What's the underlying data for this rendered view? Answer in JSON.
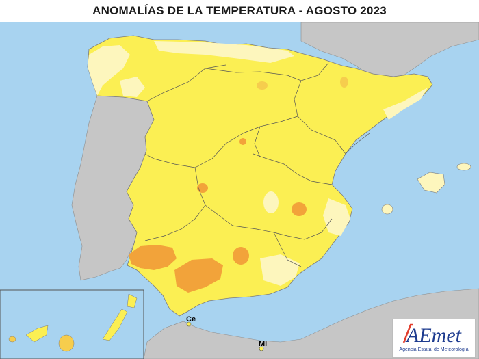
{
  "title": "ANOMALÍAS DE LA TEMPERATURA - AGOSTO 2023",
  "cities": [
    {
      "label": "Ce"
    },
    {
      "label": "Ml"
    }
  ],
  "logo": {
    "brand": "AEmet",
    "subtitle": "Agencia Estatal de Meteorología"
  },
  "colors": {
    "sea": "#a8d3f0",
    "land_other": "#c6c6c6",
    "anomaly_light": "#fdf6bd",
    "anomaly_moderate": "#fbef53",
    "anomaly_high": "#f6cd4d",
    "anomaly_very_high": "#f2a33a",
    "border": "#555555"
  }
}
